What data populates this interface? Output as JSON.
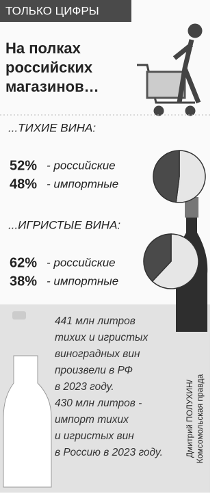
{
  "header": {
    "tag": "ТОЛЬКО ЦИФРЫ",
    "title": [
      "На полках",
      "российских",
      "магазинов…"
    ]
  },
  "sections": [
    {
      "type": "pie",
      "label": "...ТИХИЕ ВИНА:",
      "values": [
        52,
        48
      ],
      "value_labels": [
        "52%",
        "48%"
      ],
      "categories": [
        "- российские",
        "- импортные"
      ],
      "colors": [
        "#e6e6e6",
        "#4a4a4a"
      ]
    },
    {
      "type": "pie",
      "label": "...ИГРИСТЫЕ ВИНА:",
      "values": [
        62,
        38
      ],
      "value_labels": [
        "62%",
        "38%"
      ],
      "categories": [
        "- российские",
        "- импортные"
      ],
      "colors": [
        "#e6e6e6",
        "#4a4a4a"
      ]
    }
  ],
  "facts": [
    [
      "441 млн литров",
      "тихих и игристых",
      "виноградных вин",
      "произвели в РФ",
      "в 2023 году."
    ],
    [
      "430 млн литров -",
      "импорт тихих",
      "и игристых вин",
      "в Россию в 2023 году."
    ]
  ],
  "credit": [
    "Дмитрий ПОЛУХИН/",
    "Комсомольская правда"
  ]
}
